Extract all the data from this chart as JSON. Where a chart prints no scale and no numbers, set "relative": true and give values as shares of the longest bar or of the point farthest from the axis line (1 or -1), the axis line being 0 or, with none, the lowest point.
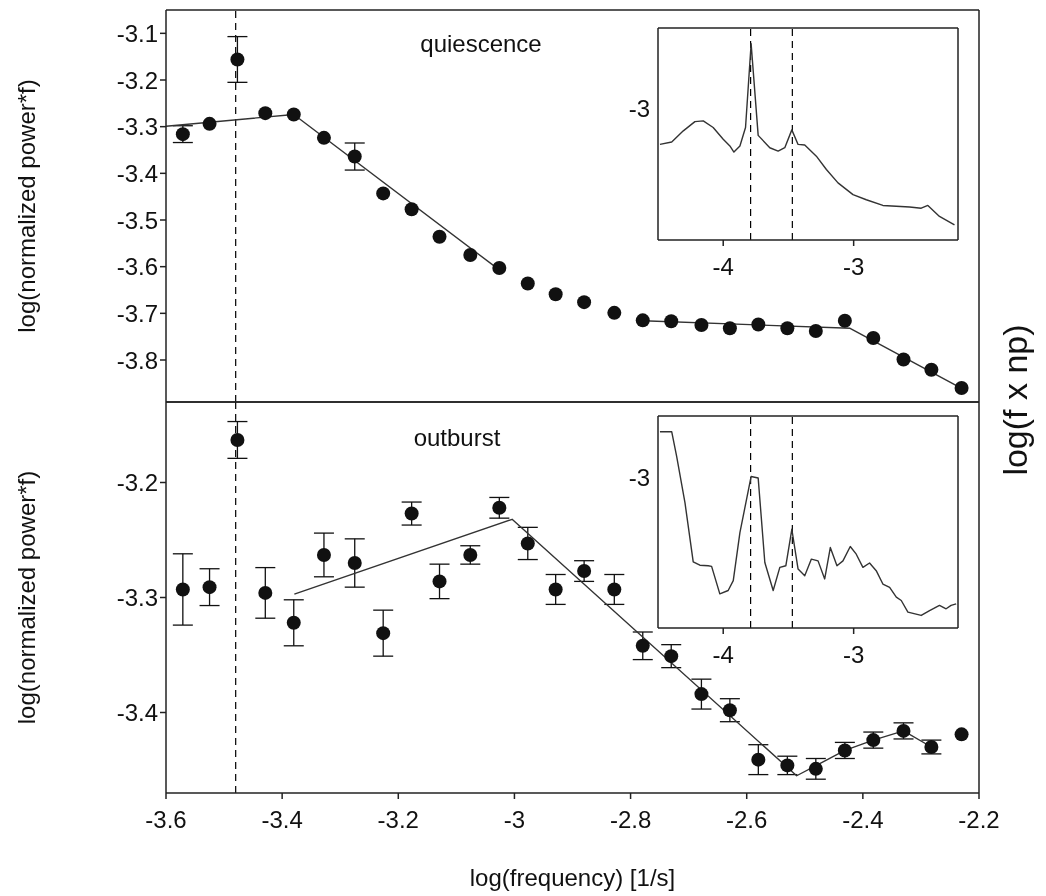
{
  "chart_data": [
    {
      "type": "scatter",
      "title": "quiescence",
      "ylabel": "log(normalized power*f)",
      "xlim": [
        -3.6,
        -2.2
      ],
      "xticks": [
        -3.6,
        -3.4,
        -3.2,
        -3,
        -2.8,
        -2.6,
        -2.4,
        -2.2
      ],
      "ylim": [
        -3.89,
        -3.05
      ],
      "yticks": [
        -3.8,
        -3.7,
        -3.6,
        -3.5,
        -3.4,
        -3.3,
        -3.2,
        -3.1
      ],
      "tick_labels": "y",
      "ref_lines": [
        {
          "axis": "x",
          "value": -3.48,
          "line_style": "dashed",
          "color": "#000000"
        }
      ],
      "series": [
        {
          "color": "#111111",
          "marker": "circle",
          "x": [
            -3.571,
            -3.525,
            -3.477,
            -3.429,
            -3.38,
            -3.328,
            -3.275,
            -3.226,
            -3.177,
            -3.129,
            -3.076,
            -3.026,
            -2.977,
            -2.929,
            -2.88,
            -2.828,
            -2.779,
            -2.73,
            -2.678,
            -2.629,
            -2.58,
            -2.53,
            -2.481,
            -2.431,
            -2.382,
            -2.33,
            -2.282,
            -2.23
          ],
          "values": [
            -3.316,
            -3.294,
            -3.156,
            -3.271,
            -3.274,
            -3.324,
            -3.364,
            -3.443,
            -3.477,
            -3.536,
            -3.575,
            -3.603,
            -3.636,
            -3.659,
            -3.676,
            -3.699,
            -3.715,
            -3.717,
            -3.725,
            -3.732,
            -3.724,
            -3.732,
            -3.738,
            -3.716,
            -3.753,
            -3.799,
            -3.821,
            -3.86
          ],
          "errors": [
            0.018,
            null,
            0.049,
            null,
            null,
            null,
            0.029,
            null,
            null,
            null,
            null,
            null,
            null,
            null,
            null,
            null,
            null,
            null,
            null,
            null,
            null,
            null,
            null,
            null,
            null,
            null,
            null,
            null
          ]
        },
        {
          "type": "line",
          "color": "#333333",
          "marker": "none",
          "line_style": "solid",
          "x": [
            -3.6,
            -3.38,
            -3.026,
            -2.9,
            -2.779,
            -2.422,
            -2.23
          ],
          "values": [
            -3.299,
            -3.274,
            -3.607,
            null,
            -3.716,
            -3.732,
            -3.861
          ]
        }
      ]
    },
    {
      "type": "line",
      "relative": true,
      "ylabel": "log(f x np)",
      "annotations": [
        "-3"
      ],
      "xlim": [
        -4.5,
        -2.2
      ],
      "xticks": [
        -4,
        -3
      ],
      "ref_lines": [
        {
          "axis": "x",
          "value": -3.79,
          "line_style": "dashed",
          "color": "#000000"
        },
        {
          "axis": "x",
          "value": -3.47,
          "line_style": "dashed",
          "color": "#000000"
        }
      ],
      "series": [
        {
          "color": "#333333",
          "marker": "none",
          "line_style": "solid",
          "x": [
            -4.485,
            -4.395,
            -4.306,
            -4.217,
            -4.153,
            -4.077,
            -4.0,
            -3.949,
            -3.918,
            -3.872,
            -3.829,
            -3.786,
            -3.732,
            -3.643,
            -3.579,
            -3.528,
            -3.474,
            -3.426,
            -3.375,
            -3.286,
            -3.209,
            -3.12,
            -3.005,
            -2.903,
            -2.776,
            -2.571,
            -2.482,
            -2.431,
            -2.342,
            -2.227
          ],
          "values": [
            0.487,
            0.499,
            0.556,
            0.603,
            0.607,
            0.573,
            0.513,
            0.479,
            0.448,
            0.479,
            0.573,
            1.0,
            0.533,
            0.47,
            0.453,
            0.47,
            0.561,
            0.487,
            0.484,
            0.427,
            0.359,
            0.291,
            0.231,
            0.205,
            0.176,
            0.168,
            0.162,
            0.176,
            0.12,
            0.077
          ]
        }
      ]
    },
    {
      "type": "scatter",
      "title": "outburst",
      "xlabel": "log(frequency) [1/s]",
      "ylabel": "log(normalized power*f)",
      "xlim": [
        -3.6,
        -2.2
      ],
      "xticks": [
        -3.6,
        -3.4,
        -3.2,
        -3,
        -2.8,
        -2.6,
        -2.4,
        -2.2
      ],
      "ylim": [
        -3.47,
        -3.13
      ],
      "yticks": [
        -3.4,
        -3.3,
        -3.2
      ],
      "ref_lines": [
        {
          "axis": "x",
          "value": -3.48,
          "line_style": "dashed",
          "color": "#000000"
        }
      ],
      "series": [
        {
          "color": "#111111",
          "marker": "circle",
          "x": [
            -3.571,
            -3.525,
            -3.477,
            -3.429,
            -3.38,
            -3.328,
            -3.275,
            -3.226,
            -3.177,
            -3.129,
            -3.076,
            -3.026,
            -2.977,
            -2.929,
            -2.88,
            -2.828,
            -2.779,
            -2.73,
            -2.678,
            -2.629,
            -2.58,
            -2.53,
            -2.481,
            -2.431,
            -2.382,
            -2.33,
            -2.282,
            -2.23
          ],
          "values": [
            -3.293,
            -3.291,
            -3.163,
            -3.296,
            -3.322,
            -3.263,
            -3.27,
            -3.331,
            -3.227,
            -3.286,
            -3.263,
            -3.222,
            -3.253,
            -3.293,
            -3.277,
            -3.293,
            -3.342,
            -3.351,
            -3.384,
            -3.398,
            -3.441,
            -3.446,
            -3.449,
            -3.433,
            -3.424,
            -3.416,
            -3.43,
            -3.419
          ],
          "errors": [
            0.031,
            0.016,
            0.016,
            0.022,
            0.02,
            0.019,
            0.021,
            0.02,
            0.01,
            0.015,
            0.008,
            0.009,
            0.014,
            0.013,
            0.009,
            0.013,
            0.012,
            0.01,
            0.013,
            0.01,
            0.013,
            0.008,
            0.009,
            0.007,
            0.007,
            0.007,
            0.006,
            null
          ]
        },
        {
          "type": "line",
          "color": "#333333",
          "marker": "none",
          "line_style": "solid",
          "x": [
            -3.379,
            -3.004,
            -2.514,
            -2.431,
            -2.382,
            -2.33,
            -2.282
          ],
          "values": [
            -3.297,
            -3.232,
            -3.455,
            -3.433,
            -3.424,
            -3.416,
            -3.43
          ]
        }
      ]
    },
    {
      "type": "line",
      "relative": true,
      "annotations": [
        "-3"
      ],
      "xlim": [
        -4.5,
        -2.2
      ],
      "xticks": [
        -4,
        -3
      ],
      "ref_lines": [
        {
          "axis": "x",
          "value": -3.79,
          "line_style": "dashed",
          "color": "#000000"
        },
        {
          "axis": "x",
          "value": -3.47,
          "line_style": "dashed",
          "color": "#000000"
        }
      ],
      "series": [
        {
          "color": "#333333",
          "marker": "none",
          "line_style": "solid",
          "x": [
            -4.485,
            -4.395,
            -4.357,
            -4.293,
            -4.23,
            -4.179,
            -4.115,
            -4.089,
            -4.026,
            -3.962,
            -3.923,
            -3.872,
            -3.786,
            -3.732,
            -3.681,
            -3.617,
            -3.566,
            -3.52,
            -3.474,
            -3.426,
            -3.375,
            -3.324,
            -3.273,
            -3.222,
            -3.179,
            -3.128,
            -3.082,
            -3.026,
            -2.98,
            -2.929,
            -2.878,
            -2.827,
            -2.776,
            -2.724,
            -2.673,
            -2.635,
            -2.584,
            -2.482,
            -2.418,
            -2.342,
            -2.291,
            -2.253,
            -2.214
          ],
          "values": [
            1.0,
            1.0,
            0.874,
            0.637,
            0.337,
            0.32,
            0.317,
            0.314,
            0.174,
            0.191,
            0.241,
            0.486,
            0.772,
            0.764,
            0.334,
            0.191,
            0.309,
            0.317,
            0.503,
            0.3,
            0.266,
            0.351,
            0.342,
            0.25,
            0.41,
            0.317,
            0.342,
            0.415,
            0.376,
            0.309,
            0.331,
            0.292,
            0.224,
            0.207,
            0.157,
            0.14,
            0.081,
            0.064,
            0.089,
            0.115,
            0.098,
            0.115,
            0.123
          ]
        }
      ]
    }
  ]
}
